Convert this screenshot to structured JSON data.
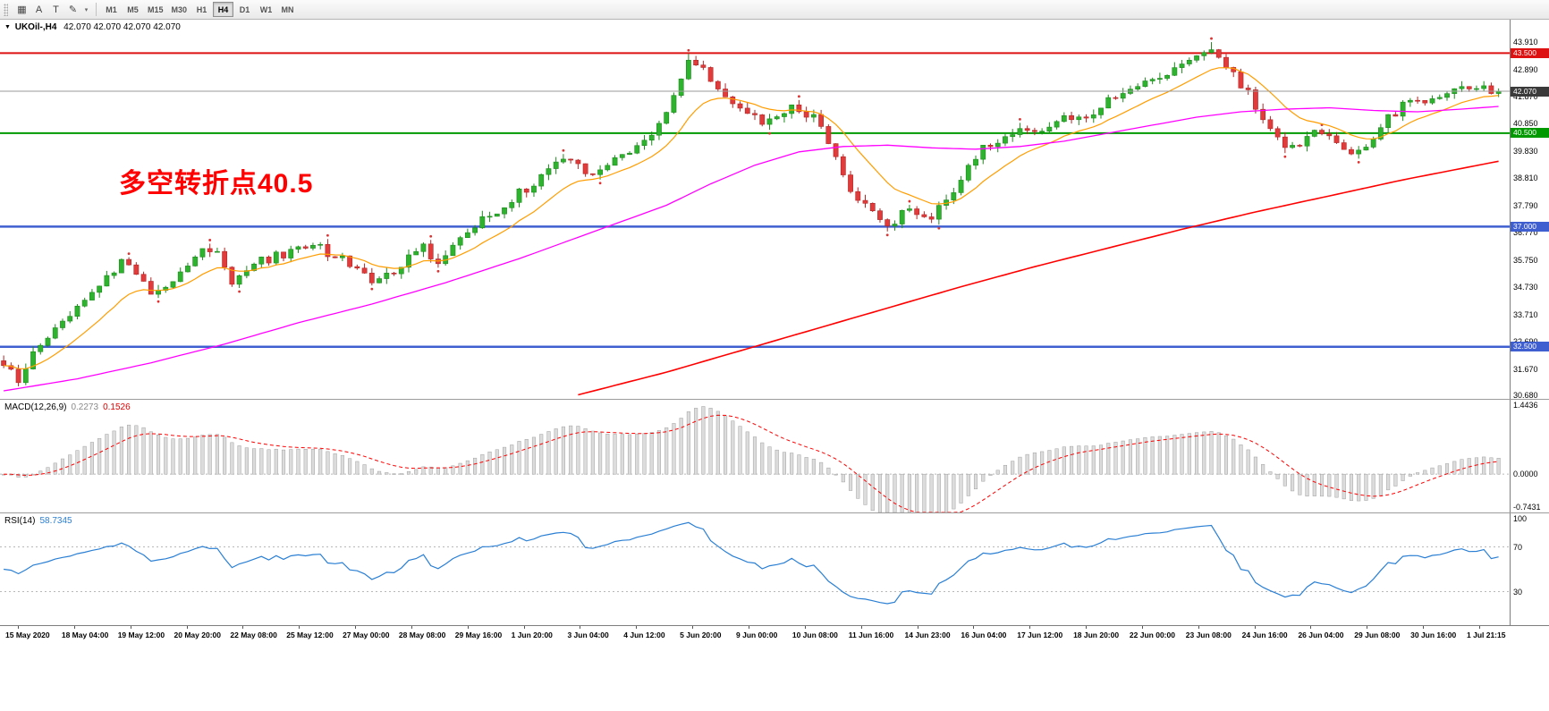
{
  "toolbar": {
    "icons": [
      {
        "name": "chart-window-icon",
        "glyph": "▦"
      },
      {
        "name": "arrow-tool-icon",
        "glyph": "A"
      },
      {
        "name": "text-tool-icon",
        "glyph": "T"
      },
      {
        "name": "draw-tools-icon",
        "glyph": "✎"
      },
      {
        "name": "draw-tools-caret-icon",
        "glyph": "▾",
        "small": true
      }
    ],
    "timeframes": [
      "M1",
      "M5",
      "M15",
      "M30",
      "H1",
      "H4",
      "D1",
      "W1",
      "MN"
    ],
    "active_timeframe": "H4"
  },
  "chart": {
    "collapse_glyph": "▼",
    "title": "UKOil-,H4",
    "ohlc_text": "42.070 42.070 42.070 42.070",
    "annotation": {
      "text": "多空转折点40.5",
      "color": "#ff0000"
    },
    "current_price_label": "42.070",
    "axis_labels": [
      "43.910",
      "42.890",
      "41.870",
      "40.850",
      "39.830",
      "38.810",
      "37.790",
      "36.770",
      "35.750",
      "34.730",
      "33.710",
      "32.690",
      "31.670",
      "30.680"
    ]
  },
  "macd": {
    "label": "MACD(12,26,9)",
    "value_main": "0.2273",
    "value_signal": "0.1526",
    "axis_labels": [
      "1.4436",
      "0.0000",
      "-0.7431"
    ],
    "scale_max": 1.4436,
    "scale_min": -0.7431
  },
  "rsi": {
    "label": "RSI(14)",
    "value": "58.7345",
    "axis_labels": [
      "100",
      "70",
      "30"
    ],
    "levels": [
      70,
      30
    ]
  },
  "time_axis": {
    "labels": [
      "15 May 2020",
      "18 May 04:00",
      "19 May 12:00",
      "20 May 20:00",
      "22 May 08:00",
      "25 May 12:00",
      "27 May 00:00",
      "28 May 08:00",
      "29 May 16:00",
      "1 Jun 20:00",
      "3 Jun 04:00",
      "4 Jun 12:00",
      "5 Jun 20:00",
      "9 Jun 00:00",
      "10 Jun 08:00",
      "11 Jun 16:00",
      "14 Jun 23:00",
      "16 Jun 04:00",
      "17 Jun 12:00",
      "18 Jun 20:00",
      "22 Jun 00:00",
      "23 Jun 08:00",
      "24 Jun 16:00",
      "26 Jun 04:00",
      "29 Jun 08:00",
      "30 Jun 16:00",
      "1 Jul 21:15"
    ]
  },
  "chart_data": {
    "type": "candlestick",
    "symbol": "UKOil-",
    "timeframe": "H4",
    "date_range": [
      "15 May 2020",
      "1 Jul 2020 21:15"
    ],
    "candle_count": 204,
    "price_axis_range": [
      30.55,
      44.75
    ],
    "current_price": 42.07,
    "last_ohlc": [
      42.07,
      42.07,
      42.07,
      42.07
    ],
    "levels": [
      {
        "price": 43.5,
        "label": "43.500",
        "color": "#dd1111",
        "width": 2
      },
      {
        "price": 40.5,
        "label": "40.500",
        "color": "#009900",
        "width": 2
      },
      {
        "price": 37.0,
        "label": "37.000",
        "color": "#3f5fd0",
        "width": 2.5
      },
      {
        "price": 32.5,
        "label": "32.500",
        "color": "#3f5fd0",
        "width": 2.5
      }
    ],
    "close_waypoints": [
      [
        0,
        31.9
      ],
      [
        2,
        31.15
      ],
      [
        4,
        32.3
      ],
      [
        8,
        33.5
      ],
      [
        12,
        34.6
      ],
      [
        16,
        35.6
      ],
      [
        18,
        35.2
      ],
      [
        20,
        34.45
      ],
      [
        23,
        34.9
      ],
      [
        26,
        35.9
      ],
      [
        29,
        36.25
      ],
      [
        31,
        34.9
      ],
      [
        34,
        35.6
      ],
      [
        38,
        36.0
      ],
      [
        42,
        36.3
      ],
      [
        46,
        35.8
      ],
      [
        50,
        34.95
      ],
      [
        54,
        35.5
      ],
      [
        57,
        36.3
      ],
      [
        59,
        35.6
      ],
      [
        62,
        36.7
      ],
      [
        66,
        37.4
      ],
      [
        70,
        38.25
      ],
      [
        74,
        39.1
      ],
      [
        77,
        39.6
      ],
      [
        80,
        38.9
      ],
      [
        84,
        39.7
      ],
      [
        88,
        40.5
      ],
      [
        91,
        41.8
      ],
      [
        93,
        43.2
      ],
      [
        95,
        42.8
      ],
      [
        98,
        42.0
      ],
      [
        101,
        41.2
      ],
      [
        104,
        40.9
      ],
      [
        107,
        41.4
      ],
      [
        110,
        41.2
      ],
      [
        112,
        40.1
      ],
      [
        114,
        38.8
      ],
      [
        117,
        37.8
      ],
      [
        120,
        37.1
      ],
      [
        123,
        37.6
      ],
      [
        126,
        37.3
      ],
      [
        128,
        38.0
      ],
      [
        130,
        38.9
      ],
      [
        133,
        39.9
      ],
      [
        136,
        40.5
      ],
      [
        140,
        40.6
      ],
      [
        144,
        41.0
      ],
      [
        148,
        41.3
      ],
      [
        151,
        41.9
      ],
      [
        155,
        42.3
      ],
      [
        158,
        42.8
      ],
      [
        161,
        43.1
      ],
      [
        164,
        43.55
      ],
      [
        166,
        43.0
      ],
      [
        169,
        42.0
      ],
      [
        172,
        40.6
      ],
      [
        175,
        39.9
      ],
      [
        178,
        40.5
      ],
      [
        181,
        40.2
      ],
      [
        184,
        39.7
      ],
      [
        187,
        40.8
      ],
      [
        190,
        41.5
      ],
      [
        193,
        41.8
      ],
      [
        196,
        42.1
      ],
      [
        199,
        42.3
      ],
      [
        201,
        42.15
      ],
      [
        203,
        42.07
      ]
    ],
    "high_pins": [
      [
        93,
        43.47
      ],
      [
        164,
        43.91
      ]
    ],
    "low_pins": [
      [
        2,
        31.02
      ],
      [
        121,
        36.85
      ]
    ],
    "ma_fast_period": 12,
    "ma_medium_waypoints": [
      [
        0,
        30.85
      ],
      [
        10,
        31.3
      ],
      [
        20,
        31.9
      ],
      [
        30,
        32.6
      ],
      [
        40,
        33.4
      ],
      [
        50,
        34.1
      ],
      [
        60,
        34.9
      ],
      [
        70,
        35.8
      ],
      [
        80,
        36.8
      ],
      [
        90,
        37.8
      ],
      [
        96,
        38.6
      ],
      [
        102,
        39.3
      ],
      [
        108,
        39.8
      ],
      [
        114,
        40.0
      ],
      [
        120,
        40.05
      ],
      [
        126,
        39.95
      ],
      [
        132,
        39.9
      ],
      [
        138,
        40.0
      ],
      [
        144,
        40.2
      ],
      [
        150,
        40.5
      ],
      [
        156,
        40.8
      ],
      [
        162,
        41.1
      ],
      [
        168,
        41.3
      ],
      [
        174,
        41.4
      ],
      [
        180,
        41.45
      ],
      [
        186,
        41.35
      ],
      [
        192,
        41.3
      ],
      [
        198,
        41.4
      ],
      [
        203,
        41.5
      ]
    ],
    "ma_slow_waypoints": [
      [
        78,
        30.7
      ],
      [
        90,
        31.55
      ],
      [
        100,
        32.35
      ],
      [
        110,
        33.15
      ],
      [
        120,
        33.95
      ],
      [
        130,
        34.75
      ],
      [
        140,
        35.5
      ],
      [
        150,
        36.2
      ],
      [
        160,
        36.9
      ],
      [
        170,
        37.55
      ],
      [
        180,
        38.15
      ],
      [
        190,
        38.75
      ],
      [
        203,
        39.45
      ]
    ],
    "indicators": [
      {
        "name": "MACD",
        "params": [
          12,
          26,
          9
        ],
        "current_values": [
          0.2273,
          0.1526
        ],
        "scale": [
          -0.7431,
          1.4436
        ]
      },
      {
        "name": "RSI",
        "params": [
          14
        ],
        "current_value": 58.7345,
        "levels": [
          30,
          70
        ],
        "scale": [
          0,
          100
        ]
      }
    ],
    "colors": {
      "candle_up": "#2db32d",
      "candle_up_border": "#1d8a1d",
      "candle_down": "#e23b3b",
      "candle_down_border": "#b22525",
      "ma_fast": "#ff9d00",
      "ma_medium": "#ff00ff",
      "ma_slow": "#ff0000",
      "macd_histogram": "#dcdcdc",
      "macd_histogram_border": "#a0a0a0",
      "macd_signal": "#ff0000",
      "rsi_line": "#2a7fd4",
      "fractal_mark": "#e03030",
      "current_price_line": "#9a9a9a",
      "current_price_badge": "#3a3a3a"
    }
  }
}
